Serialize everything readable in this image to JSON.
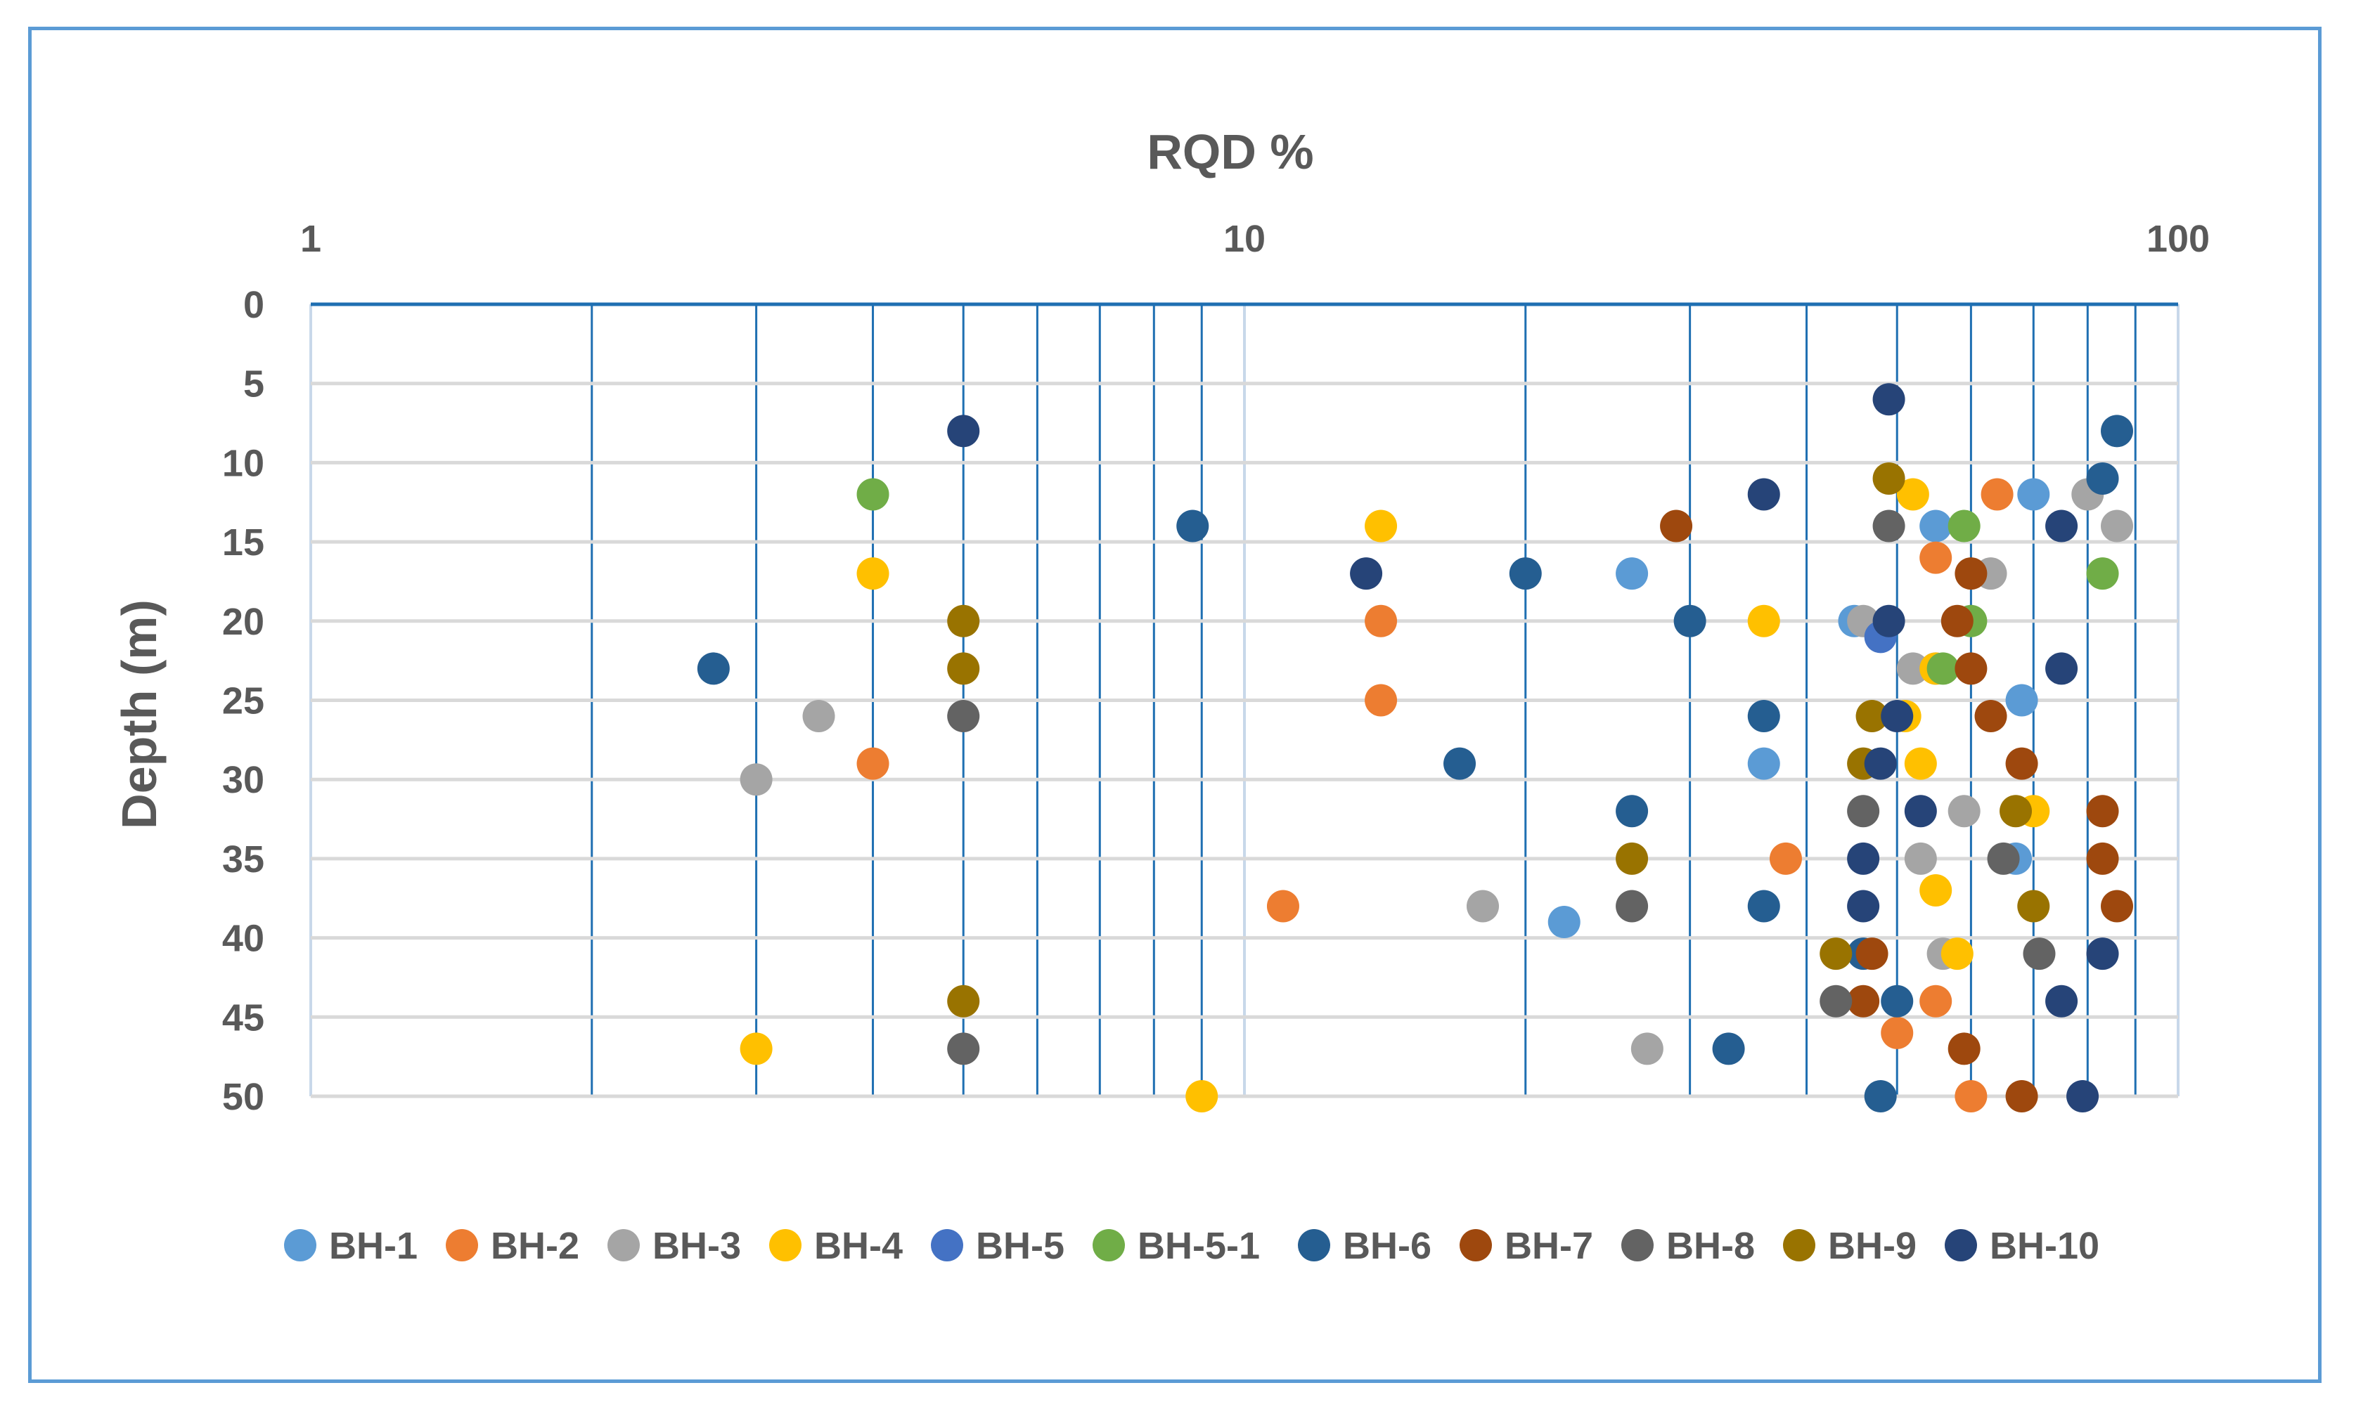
{
  "chart_data": {
    "type": "scatter",
    "title": "RQD %",
    "xlabel": "RQD %",
    "ylabel": "Depth (m)",
    "xscale": "log",
    "xlim": [
      1,
      100
    ],
    "ylim": [
      0,
      50
    ],
    "x_ticks": [
      "1",
      "10",
      "100"
    ],
    "y_ticks": [
      "0",
      "5",
      "10",
      "15",
      "20",
      "25",
      "30",
      "35",
      "40",
      "45",
      "50"
    ],
    "legend_position": "bottom",
    "series": [
      {
        "name": "BH-1",
        "color": "#5b9bd5",
        "points": [
          [
            70,
            12
          ],
          [
            55,
            14
          ],
          [
            26,
            17
          ],
          [
            45,
            20
          ],
          [
            55,
            23
          ],
          [
            68,
            25
          ],
          [
            36,
            29
          ],
          [
            67,
            35
          ],
          [
            22,
            39
          ]
        ]
      },
      {
        "name": "BH-2",
        "color": "#ed7d31",
        "points": [
          [
            64,
            12
          ],
          [
            55,
            16
          ],
          [
            14,
            20
          ],
          [
            14,
            25
          ],
          [
            4,
            29
          ],
          [
            38,
            35
          ],
          [
            11,
            38
          ],
          [
            55,
            44
          ],
          [
            50,
            46
          ],
          [
            60,
            50
          ]
        ]
      },
      {
        "name": "BH-3",
        "color": "#a5a5a5",
        "points": [
          [
            80,
            12
          ],
          [
            86,
            14
          ],
          [
            63,
            17
          ],
          [
            46,
            20
          ],
          [
            52,
            23
          ],
          [
            3.5,
            26
          ],
          [
            3,
            30
          ],
          [
            59,
            32
          ],
          [
            53,
            35
          ],
          [
            18,
            38
          ],
          [
            56,
            41
          ],
          [
            27,
            47
          ]
        ]
      },
      {
        "name": "BH-4",
        "color": "#ffc000",
        "points": [
          [
            52,
            12
          ],
          [
            14,
            14
          ],
          [
            4,
            17
          ],
          [
            36,
            20
          ],
          [
            55,
            23
          ],
          [
            51,
            26
          ],
          [
            53,
            29
          ],
          [
            70,
            32
          ],
          [
            55,
            37
          ],
          [
            58,
            41
          ],
          [
            3,
            47
          ],
          [
            9,
            50
          ]
        ]
      },
      {
        "name": "BH-5",
        "color": "#4472c4",
        "points": [
          [
            48,
            21
          ]
        ]
      },
      {
        "name": "BH-5-1",
        "color": "#70ad47",
        "points": [
          [
            4,
            12
          ],
          [
            59,
            14
          ],
          [
            83,
            17
          ],
          [
            60,
            20
          ],
          [
            56,
            23
          ]
        ]
      },
      {
        "name": "BH-6",
        "color": "#255e91",
        "points": [
          [
            86,
            8
          ],
          [
            83,
            11
          ],
          [
            8.8,
            14
          ],
          [
            20,
            17
          ],
          [
            30,
            20
          ],
          [
            2.7,
            23
          ],
          [
            36,
            26
          ],
          [
            17,
            29
          ],
          [
            26,
            32
          ],
          [
            36,
            38
          ],
          [
            46,
            41
          ],
          [
            50,
            44
          ],
          [
            33,
            47
          ],
          [
            48,
            50
          ]
        ]
      },
      {
        "name": "BH-7",
        "color": "#9e480e",
        "points": [
          [
            29,
            14
          ],
          [
            60,
            17
          ],
          [
            58,
            20
          ],
          [
            60,
            23
          ],
          [
            63,
            26
          ],
          [
            68,
            29
          ],
          [
            83,
            32
          ],
          [
            83,
            35
          ],
          [
            86,
            38
          ],
          [
            47,
            41
          ],
          [
            46,
            44
          ],
          [
            59,
            47
          ],
          [
            68,
            50
          ]
        ]
      },
      {
        "name": "BH-8",
        "color": "#636363",
        "points": [
          [
            49,
            14
          ],
          [
            5,
            26
          ],
          [
            46,
            32
          ],
          [
            65,
            35
          ],
          [
            26,
            38
          ],
          [
            71,
            41
          ],
          [
            43,
            44
          ],
          [
            5,
            47
          ]
        ]
      },
      {
        "name": "BH-9",
        "color": "#997300",
        "points": [
          [
            49,
            11
          ],
          [
            5,
            20
          ],
          [
            5,
            23
          ],
          [
            47,
            26
          ],
          [
            46,
            29
          ],
          [
            67,
            32
          ],
          [
            26,
            35
          ],
          [
            70,
            38
          ],
          [
            43,
            41
          ],
          [
            5,
            44
          ]
        ]
      },
      {
        "name": "BH-10",
        "color": "#264478",
        "points": [
          [
            49,
            6
          ],
          [
            5,
            8
          ],
          [
            36,
            12
          ],
          [
            75,
            14
          ],
          [
            13.5,
            17
          ],
          [
            49,
            20
          ],
          [
            75,
            23
          ],
          [
            50,
            26
          ],
          [
            48,
            29
          ],
          [
            53,
            32
          ],
          [
            46,
            35
          ],
          [
            46,
            38
          ],
          [
            83,
            41
          ],
          [
            75,
            44
          ],
          [
            79,
            50
          ]
        ]
      }
    ]
  }
}
